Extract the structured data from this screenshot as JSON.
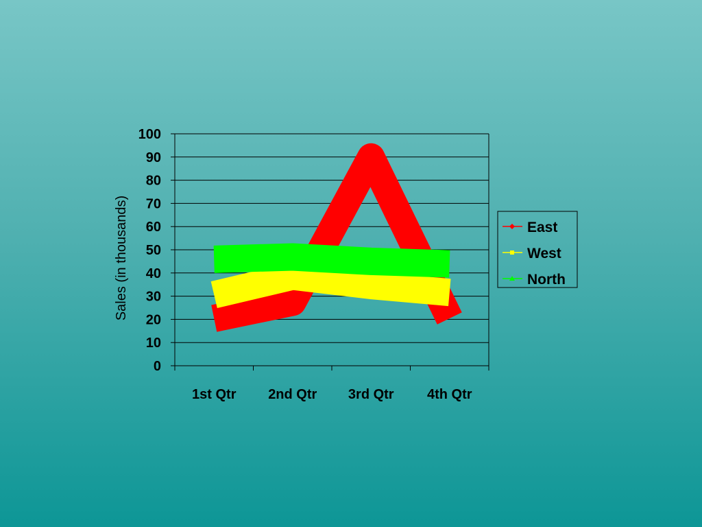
{
  "colors": {
    "background_top": "#78c6c6",
    "background_bottom": "#0d9696",
    "plot_area": "none",
    "gridline": "#000000"
  },
  "chart_data": {
    "type": "line",
    "title": "",
    "xlabel": "",
    "ylabel": "Sales (in thousands)",
    "categories": [
      "1st Qtr",
      "2nd Qtr",
      "3rd Qtr",
      "4th Qtr"
    ],
    "ylim": [
      0,
      100
    ],
    "yticks": [
      0,
      10,
      20,
      30,
      40,
      50,
      60,
      70,
      80,
      90,
      100
    ],
    "grid": true,
    "legend_position": "right",
    "series": [
      {
        "name": "East",
        "values": [
          20.4,
          27.4,
          90,
          20.4
        ],
        "color": "#ff0000",
        "marker": "diamond"
      },
      {
        "name": "West",
        "values": [
          30.6,
          38.6,
          34.6,
          31.6
        ],
        "color": "#ffff00",
        "marker": "square"
      },
      {
        "name": "North",
        "values": [
          45.9,
          46.9,
          45,
          43.9
        ],
        "color": "#00ff00",
        "marker": "triangle"
      }
    ]
  }
}
